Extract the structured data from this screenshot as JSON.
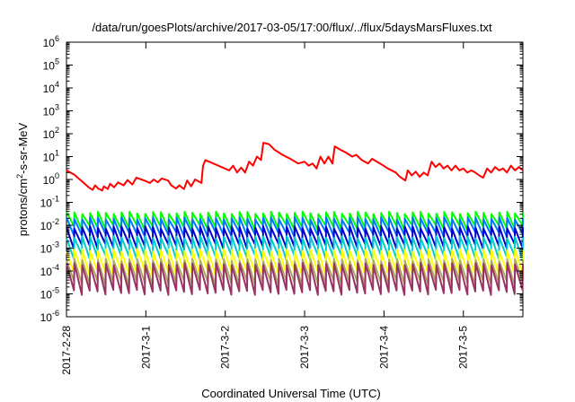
{
  "chart_data": {
    "type": "line",
    "title": "/data/run/goesPlots/archive/2017-03-05/17:00/flux/../flux/5daysMarsFluxes.txt",
    "xlabel": "Coordinated Universal Time (UTC)",
    "ylabel_main": "protons/cm",
    "ylabel_sup": "2",
    "ylabel_tail": "-s-sr-MeV",
    "y_scale": "log",
    "ylim": [
      1e-06,
      1000000.0
    ],
    "y_ticks": [
      {
        "base": "10",
        "exp": "-6",
        "value": 1e-06
      },
      {
        "base": "10",
        "exp": "-5",
        "value": 1e-05
      },
      {
        "base": "10",
        "exp": "-4",
        "value": 0.0001
      },
      {
        "base": "10",
        "exp": "-3",
        "value": 0.001
      },
      {
        "base": "10",
        "exp": "-2",
        "value": 0.01
      },
      {
        "base": "10",
        "exp": "-1",
        "value": 0.1
      },
      {
        "base": "10",
        "exp": "0",
        "value": 1
      },
      {
        "base": "10",
        "exp": "1",
        "value": 10
      },
      {
        "base": "10",
        "exp": "2",
        "value": 100
      },
      {
        "base": "10",
        "exp": "3",
        "value": 1000
      },
      {
        "base": "10",
        "exp": "4",
        "value": 10000
      },
      {
        "base": "10",
        "exp": "5",
        "value": 100000
      },
      {
        "base": "10",
        "exp": "6",
        "value": 1000000
      }
    ],
    "x_unit": "days since 2017-2-28",
    "xlim": [
      0,
      5.75
    ],
    "x_ticks": [
      {
        "label": "2017-2-28",
        "value": 0
      },
      {
        "label": "2017-3-1",
        "value": 1
      },
      {
        "label": "2017-3-2",
        "value": 2
      },
      {
        "label": "2017-3-3",
        "value": 3
      },
      {
        "label": "2017-3-4",
        "value": 4
      },
      {
        "label": "2017-3-5",
        "value": 5
      }
    ],
    "grid": false,
    "legend": "none",
    "series": [
      {
        "color": "#ff0000",
        "points": [
          [
            0,
            2.5
          ],
          [
            0.1,
            1.6
          ],
          [
            0.2,
            0.8
          ],
          [
            0.28,
            0.45
          ],
          [
            0.33,
            0.35
          ],
          [
            0.36,
            0.55
          ],
          [
            0.4,
            0.4
          ],
          [
            0.45,
            0.33
          ],
          [
            0.47,
            0.5
          ],
          [
            0.52,
            0.38
          ],
          [
            0.55,
            0.65
          ],
          [
            0.6,
            0.45
          ],
          [
            0.65,
            0.75
          ],
          [
            0.72,
            0.55
          ],
          [
            0.77,
            0.95
          ],
          [
            0.83,
            0.6
          ],
          [
            0.88,
            1.2
          ],
          [
            1.0,
            0.85
          ],
          [
            1.05,
            0.7
          ],
          [
            1.1,
            1.0
          ],
          [
            1.15,
            0.75
          ],
          [
            1.2,
            1.1
          ],
          [
            1.28,
            0.9
          ],
          [
            1.32,
            0.55
          ],
          [
            1.38,
            0.4
          ],
          [
            1.42,
            0.55
          ],
          [
            1.48,
            0.38
          ],
          [
            1.52,
            0.9
          ],
          [
            1.57,
            0.5
          ],
          [
            1.62,
            1.0
          ],
          [
            1.7,
            0.7
          ],
          [
            1.72,
            4.0
          ],
          [
            1.75,
            7.0
          ],
          [
            1.85,
            5.0
          ],
          [
            1.95,
            3.5
          ],
          [
            2.05,
            2.5
          ],
          [
            2.1,
            4.0
          ],
          [
            2.15,
            2.0
          ],
          [
            2.2,
            3.3
          ],
          [
            2.25,
            2.0
          ],
          [
            2.3,
            6.0
          ],
          [
            2.35,
            4.0
          ],
          [
            2.4,
            10
          ],
          [
            2.45,
            7
          ],
          [
            2.48,
            40
          ],
          [
            2.55,
            35
          ],
          [
            2.62,
            20
          ],
          [
            2.72,
            12
          ],
          [
            2.82,
            8
          ],
          [
            2.92,
            5
          ],
          [
            3.0,
            6
          ],
          [
            3.05,
            4
          ],
          [
            3.1,
            5
          ],
          [
            3.15,
            3
          ],
          [
            3.2,
            10
          ],
          [
            3.25,
            5
          ],
          [
            3.3,
            10
          ],
          [
            3.35,
            5
          ],
          [
            3.38,
            28
          ],
          [
            3.45,
            20
          ],
          [
            3.52,
            15
          ],
          [
            3.6,
            10
          ],
          [
            3.65,
            12
          ],
          [
            3.72,
            7
          ],
          [
            3.8,
            5
          ],
          [
            3.85,
            8
          ],
          [
            3.95,
            5
          ],
          [
            4.05,
            3
          ],
          [
            4.15,
            2
          ],
          [
            4.2,
            1.3
          ],
          [
            4.27,
            0.9
          ],
          [
            4.3,
            2.5
          ],
          [
            4.35,
            1.5
          ],
          [
            4.4,
            2.2
          ],
          [
            4.45,
            1.3
          ],
          [
            4.5,
            2
          ],
          [
            4.55,
            1.5
          ],
          [
            4.6,
            6
          ],
          [
            4.65,
            3.5
          ],
          [
            4.7,
            5
          ],
          [
            4.75,
            3
          ],
          [
            4.8,
            4
          ],
          [
            4.85,
            2.5
          ],
          [
            4.9,
            4
          ],
          [
            4.95,
            2.5
          ],
          [
            5.0,
            3
          ],
          [
            5.05,
            2
          ],
          [
            5.1,
            2.5
          ],
          [
            5.15,
            2
          ],
          [
            5.2,
            1.5
          ],
          [
            5.25,
            1.2
          ],
          [
            5.3,
            3
          ],
          [
            5.35,
            2
          ],
          [
            5.4,
            3.5
          ],
          [
            5.45,
            2.5
          ],
          [
            5.5,
            3
          ],
          [
            5.55,
            2
          ],
          [
            5.6,
            4
          ],
          [
            5.65,
            2.5
          ],
          [
            5.7,
            3.5
          ],
          [
            5.75,
            2.5
          ]
        ]
      },
      {
        "color": "#00ff00",
        "top": 0.035,
        "bottom": 0.008,
        "n": 58
      },
      {
        "color": "#0077ff",
        "top": 0.02,
        "bottom": 0.004,
        "n": 58
      },
      {
        "color": "#0000cc",
        "top": 0.008,
        "bottom": 0.0012,
        "n": 58
      },
      {
        "color": "#00cccc",
        "top": 0.003,
        "bottom": 0.0004,
        "n": 58
      },
      {
        "color": "#ffff00",
        "top": 0.0008,
        "bottom": 8e-05,
        "n": 58
      },
      {
        "color": "#aaaa66",
        "top": 0.0003,
        "bottom": 3e-05,
        "n": 58
      },
      {
        "color": "#993366",
        "top": 0.0002,
        "bottom": 1.2e-05,
        "n": 58
      }
    ]
  }
}
